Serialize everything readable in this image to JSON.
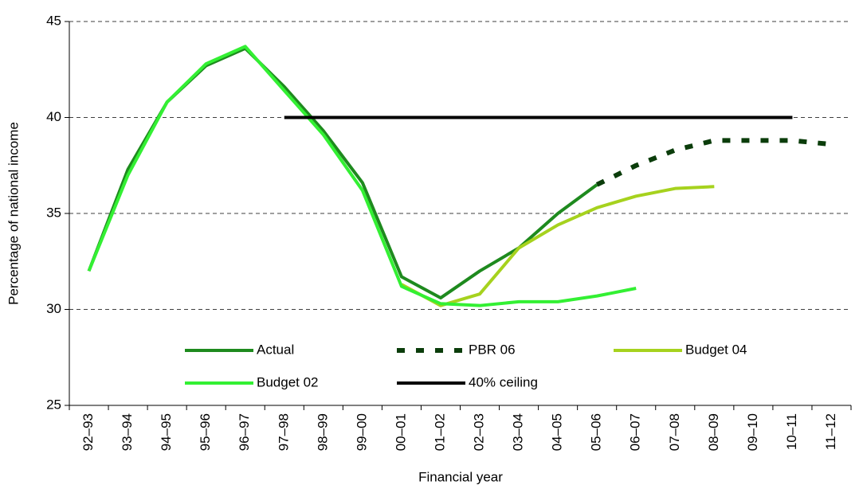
{
  "chart_data": {
    "type": "line",
    "y_label": "Percentage of national income",
    "x_label": "Financial year",
    "categories": [
      "92–93",
      "93–94",
      "94–95",
      "95–96",
      "96–97",
      "97–98",
      "98–99",
      "99–00",
      "00–01",
      "01–02",
      "02–03",
      "03–04",
      "04–05",
      "05–06",
      "06–07",
      "07–08",
      "08–09",
      "09–10",
      "10–11",
      "11–12"
    ],
    "ylim": [
      25,
      45
    ],
    "yticks": [
      25,
      30,
      35,
      40,
      45
    ],
    "grid": true,
    "series": [
      {
        "name": "Actual",
        "color": "#1e8a1e",
        "dash": false,
        "values": [
          32,
          37.3,
          40.8,
          42.7,
          43.6,
          41.6,
          39.3,
          36.6,
          31.7,
          30.6,
          32,
          33.2,
          35,
          36.5,
          null,
          null,
          null,
          null,
          null,
          null
        ]
      },
      {
        "name": "PBR 06",
        "color": "#0b3d0b",
        "dash": true,
        "values": [
          null,
          null,
          null,
          null,
          null,
          null,
          null,
          null,
          null,
          null,
          null,
          null,
          null,
          36.5,
          37.5,
          38.3,
          38.8,
          38.8,
          38.8,
          38.6
        ]
      },
      {
        "name": "Budget 04",
        "color": "#a6d21e",
        "dash": false,
        "values": [
          null,
          null,
          null,
          null,
          null,
          null,
          null,
          null,
          31.3,
          30.2,
          30.8,
          33.2,
          34.4,
          35.3,
          35.9,
          36.3,
          36.4,
          null,
          null,
          null
        ]
      },
      {
        "name": "Budget 02",
        "color": "#33f033",
        "dash": false,
        "values": [
          32,
          37,
          40.8,
          42.8,
          43.7,
          41.4,
          39.1,
          36.2,
          31.2,
          30.3,
          30.2,
          30.4,
          30.4,
          30.7,
          31.1,
          null,
          null,
          null,
          null,
          null
        ]
      },
      {
        "name": "40% ceiling",
        "color": "#000000",
        "dash": false,
        "values": [
          null,
          null,
          null,
          null,
          null,
          40,
          40,
          40,
          40,
          40,
          40,
          40,
          40,
          40,
          40,
          40,
          40,
          40,
          40,
          null
        ]
      }
    ]
  }
}
